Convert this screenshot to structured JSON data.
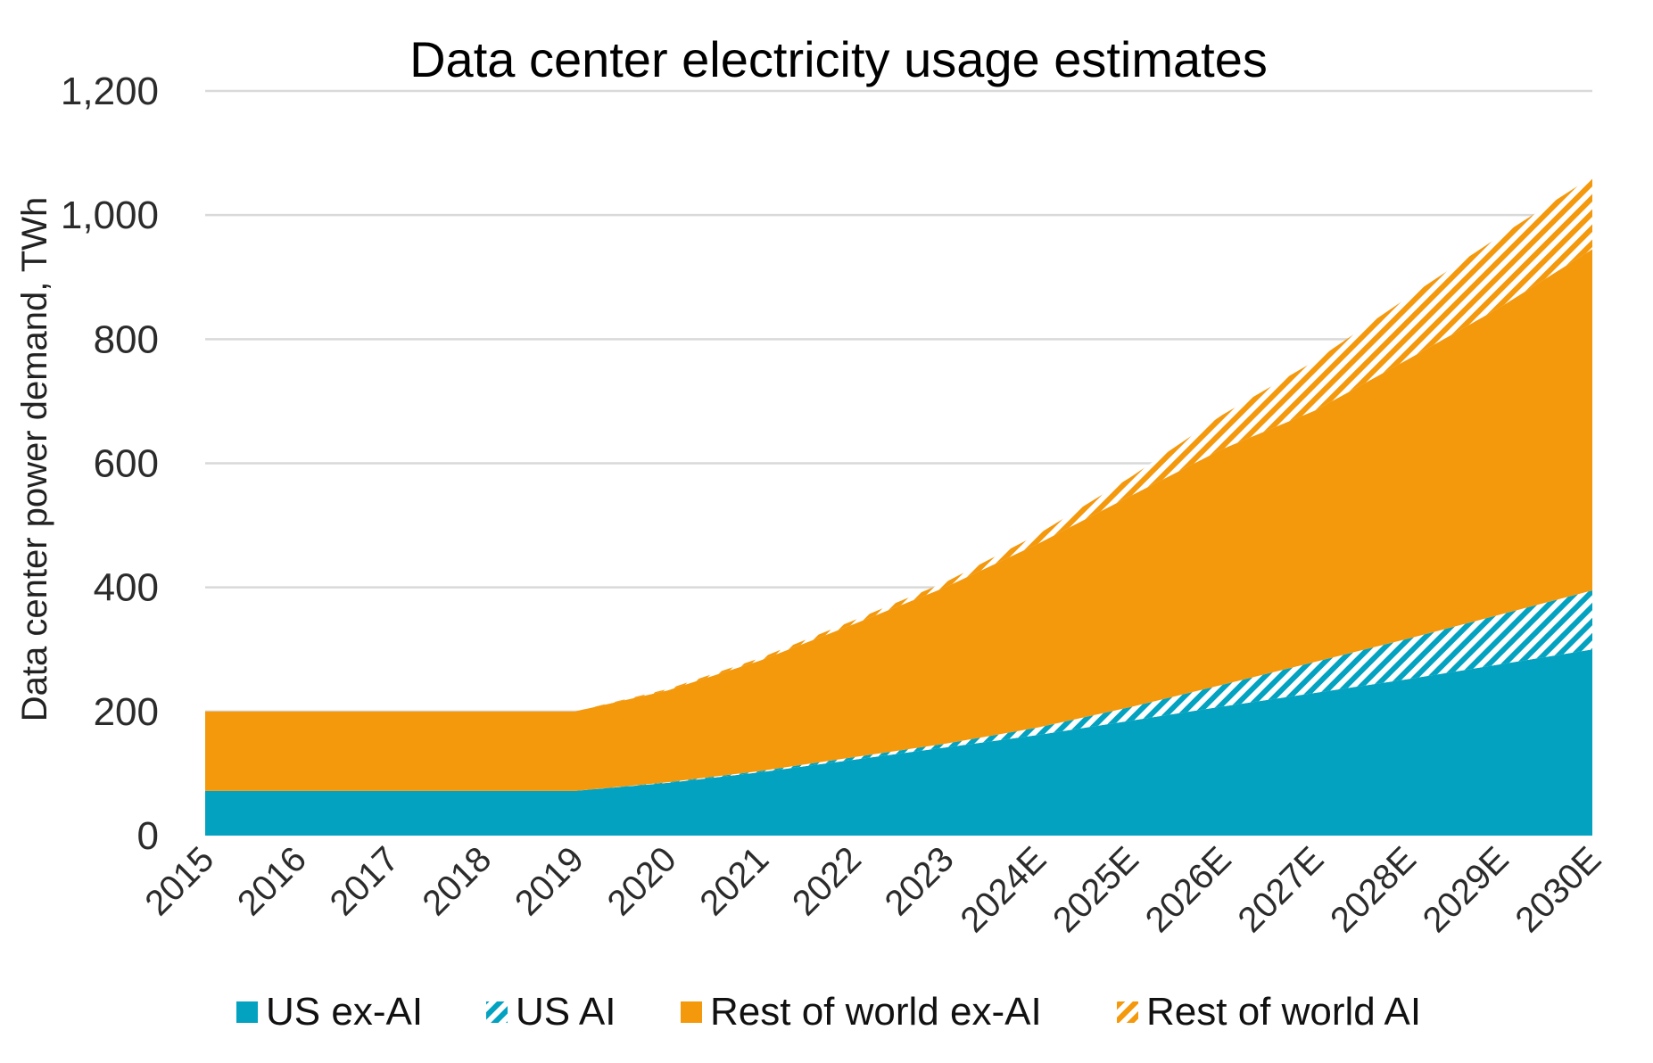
{
  "colors": {
    "us": "#02A2C0",
    "row": "#F4980C",
    "grid": "#d9d9d9"
  },
  "legend": {
    "items": [
      {
        "label": "US ex-AI",
        "style": "solid",
        "color": "#02A2C0"
      },
      {
        "label": "US AI",
        "style": "hatched",
        "color": "#02A2C0"
      },
      {
        "label": "Rest of world ex-AI",
        "style": "solid",
        "color": "#F4980C"
      },
      {
        "label": "Rest of world AI",
        "style": "hatched",
        "color": "#F4980C"
      }
    ]
  },
  "chart_data": {
    "type": "area",
    "stacked": true,
    "title": "Data center electricity usage estimates",
    "xlabel": "",
    "ylabel": "Data center power demand, TWh",
    "ylim": [
      0,
      1200
    ],
    "yticks": [
      0,
      200,
      400,
      600,
      800,
      1000,
      1200
    ],
    "ytick_labels": [
      "0",
      "200",
      "400",
      "600",
      "800",
      "1,000",
      "1,200"
    ],
    "grid": true,
    "legend_position": "bottom",
    "categories": [
      "2015",
      "2016",
      "2017",
      "2018",
      "2019",
      "2020",
      "2021",
      "2022",
      "2023",
      "2024E",
      "2025E",
      "2026E",
      "2027E",
      "2028E",
      "2029E",
      "2030E"
    ],
    "series": [
      {
        "name": "US ex-AI",
        "fill": "solid",
        "color": "#02A2C0",
        "values": [
          72,
          72,
          72,
          72,
          72,
          85,
          102,
          122,
          142,
          162,
          185,
          208,
          230,
          252,
          276,
          300
        ]
      },
      {
        "name": "US AI",
        "fill": "hatched",
        "color": "#02A2C0",
        "values": [
          0,
          0,
          0,
          0,
          0,
          1,
          2,
          4,
          6,
          12,
          22,
          35,
          50,
          65,
          80,
          95
        ]
      },
      {
        "name": "Rest of world ex-AI",
        "fill": "solid",
        "color": "#F4980C",
        "values": [
          128,
          128,
          128,
          128,
          128,
          148,
          178,
          214,
          252,
          296,
          340,
          380,
          405,
          450,
          495,
          550
        ]
      },
      {
        "name": "Rest of world AI",
        "fill": "hatched",
        "color": "#F4980C",
        "values": [
          0,
          0,
          0,
          0,
          0,
          2,
          4,
          6,
          8,
          15,
          30,
          55,
          80,
          100,
          115,
          117
        ]
      }
    ]
  }
}
